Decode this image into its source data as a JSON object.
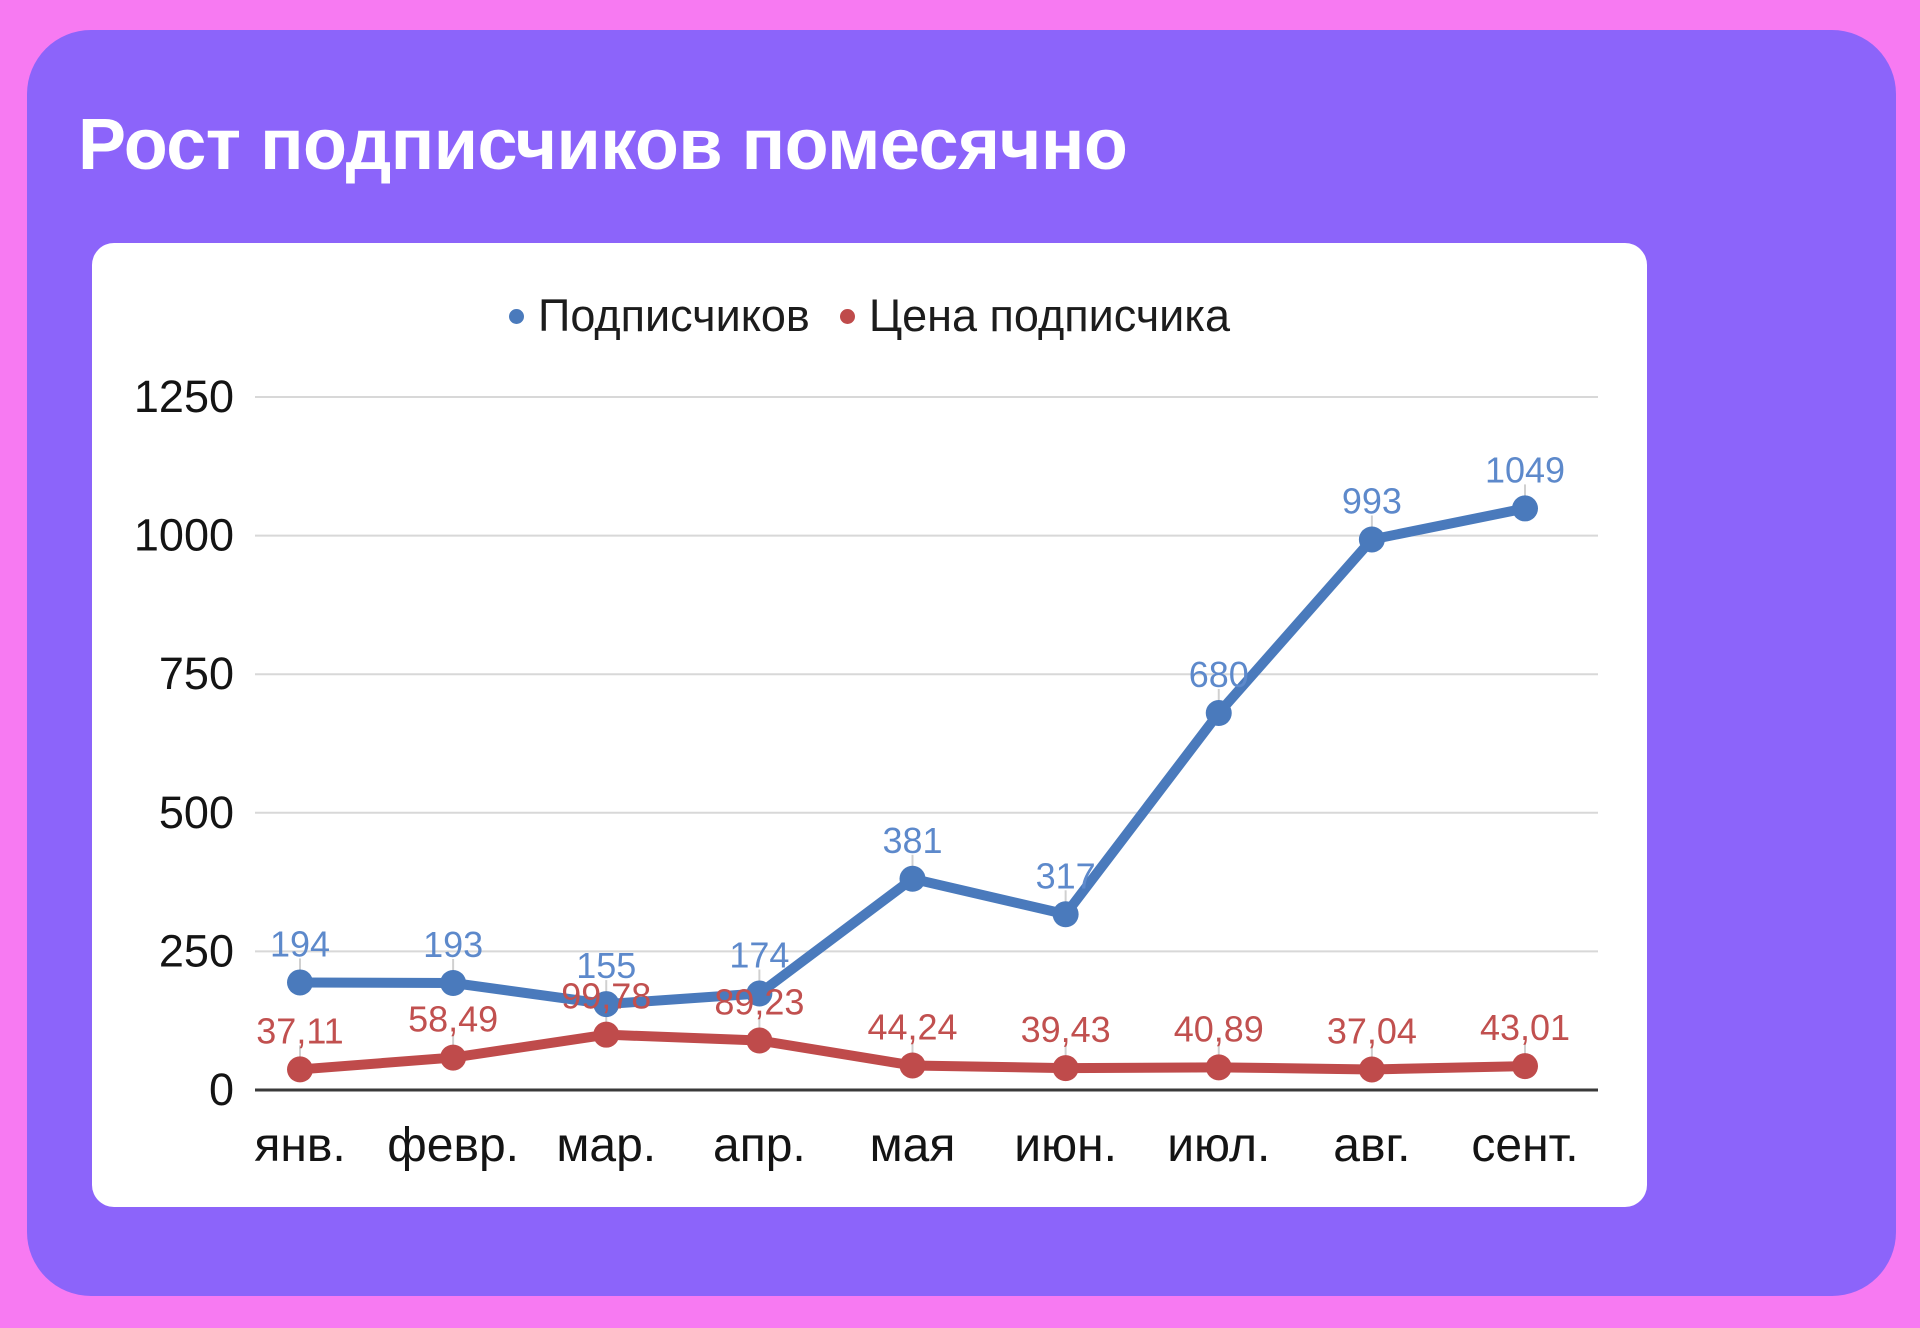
{
  "theme": {
    "background": "#f77af2",
    "panel": "#8c64fa",
    "card": "#ffffff",
    "grid": "#d8d8d8",
    "axis": "#3a3a3a",
    "tick_text": "#141414",
    "legend_text": "#1c1c1c",
    "leader_line": "#d0d0d0"
  },
  "title": "Рост подписчиков помесячно",
  "chart_data": {
    "type": "line",
    "title": "Рост подписчиков помесячно",
    "categories": [
      "янв.",
      "февр.",
      "мар.",
      "апр.",
      "мая",
      "июн.",
      "июл.",
      "авг.",
      "сент."
    ],
    "series": [
      {
        "name": "Подписчиков",
        "color": "#4a7abc",
        "label_color": "#5d89cb",
        "values": [
          194,
          193,
          155,
          174,
          381,
          317,
          680,
          993,
          1049
        ],
        "labels": [
          "194",
          "193",
          "155",
          "174",
          "381",
          "317",
          "680",
          "993",
          "1049"
        ]
      },
      {
        "name": "Цена подписчика",
        "color": "#bf4b4b",
        "label_color": "#c1504f",
        "values": [
          37.11,
          58.49,
          99.78,
          89.23,
          44.24,
          39.43,
          40.89,
          37.04,
          43.01
        ],
        "labels": [
          "37,11",
          "58,49",
          "99,78",
          "89,23",
          "44,24",
          "39,43",
          "40,89",
          "37,04",
          "43,01"
        ]
      }
    ],
    "xlabel": "",
    "ylabel": "",
    "ylim": [
      0,
      1250
    ],
    "yticks": [
      0,
      250,
      500,
      750,
      1000,
      1250
    ],
    "grid": true,
    "legend_position": "top"
  }
}
